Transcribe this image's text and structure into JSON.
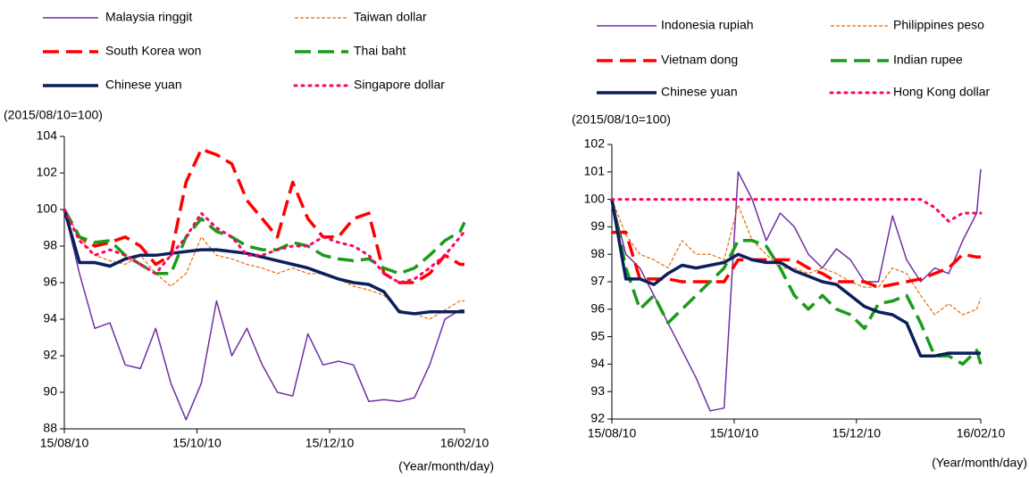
{
  "chart_data": [
    {
      "type": "line",
      "y_label": "(2015/08/10=100)",
      "x_label": "(Year/month/day)",
      "x": [
        "15/08/10",
        "15/08/17",
        "15/08/24",
        "15/08/31",
        "15/09/07",
        "15/09/14",
        "15/09/21",
        "15/09/28",
        "15/10/05",
        "15/10/12",
        "15/10/19",
        "15/10/26",
        "15/11/02",
        "15/11/09",
        "15/11/16",
        "15/11/23",
        "15/11/30",
        "15/12/07",
        "15/12/14",
        "15/12/21",
        "15/12/28",
        "16/01/04",
        "16/01/11",
        "16/01/18",
        "16/01/25",
        "16/02/01",
        "16/02/08",
        "16/02/10"
      ],
      "xlim": [
        "15/08/10",
        "16/02/10"
      ],
      "xticks": [
        "15/08/10",
        "15/10/10",
        "15/12/10",
        "16/02/10"
      ],
      "ylim": [
        88,
        104
      ],
      "yticks": [
        88,
        90,
        92,
        94,
        96,
        98,
        100,
        102,
        104
      ],
      "series": [
        {
          "name": "Malaysia ringgit",
          "color": "#7030a0",
          "style": "solid-thin",
          "values": [
            100,
            96.5,
            93.5,
            93.8,
            91.5,
            91.3,
            93.5,
            90.5,
            88.5,
            90.5,
            95.0,
            92.0,
            93.5,
            91.5,
            90.0,
            89.8,
            93.2,
            91.5,
            91.7,
            91.5,
            89.5,
            89.6,
            89.5,
            89.7,
            91.5,
            94.0,
            94.5,
            94.5
          ]
        },
        {
          "name": "Taiwan dollar",
          "color": "#e46c0a",
          "style": "short-dash",
          "values": [
            100,
            98.5,
            97.5,
            97.2,
            97.0,
            97.5,
            96.5,
            95.8,
            96.5,
            98.5,
            97.5,
            97.3,
            97.0,
            96.8,
            96.5,
            96.8,
            96.5,
            96.5,
            96.2,
            95.8,
            95.6,
            95.3,
            94.5,
            94.3,
            94.0,
            94.5,
            95.0,
            95.0
          ]
        },
        {
          "name": "South Korea won",
          "color": "#ff0000",
          "style": "long-dash",
          "values": [
            100,
            98.5,
            98.0,
            98.2,
            98.5,
            98.0,
            97.0,
            97.5,
            101.5,
            103.3,
            103.0,
            102.5,
            100.5,
            99.5,
            98.5,
            101.5,
            99.5,
            98.5,
            98.5,
            99.5,
            99.8,
            96.5,
            96.0,
            96.0,
            96.5,
            97.5,
            97.0,
            97.0
          ]
        },
        {
          "name": "Thai baht",
          "color": "#1a9b1a",
          "style": "long-dash",
          "values": [
            100,
            98.5,
            98.2,
            98.3,
            97.5,
            97.0,
            96.5,
            96.5,
            98.5,
            99.5,
            98.8,
            98.5,
            98.0,
            97.8,
            97.8,
            98.2,
            98.0,
            97.5,
            97.3,
            97.2,
            97.3,
            96.8,
            96.5,
            96.8,
            97.5,
            98.3,
            98.8,
            99.3
          ]
        },
        {
          "name": "Chinese yuan",
          "color": "#0a1f5c",
          "style": "solid-thick",
          "values": [
            100,
            97.1,
            97.1,
            96.9,
            97.3,
            97.5,
            97.5,
            97.6,
            97.7,
            97.8,
            97.8,
            97.7,
            97.6,
            97.4,
            97.2,
            97.0,
            96.8,
            96.5,
            96.2,
            96.0,
            95.9,
            95.5,
            94.4,
            94.3,
            94.4,
            94.4,
            94.4,
            94.4
          ]
        },
        {
          "name": "Singapore dollar",
          "color": "#ff0066",
          "style": "dotted",
          "values": [
            100,
            98.3,
            97.5,
            97.8,
            97.5,
            97.0,
            96.5,
            97.5,
            98.5,
            99.8,
            99.0,
            98.5,
            97.5,
            97.5,
            97.8,
            98.0,
            98.0,
            98.5,
            98.2,
            98.0,
            97.5,
            96.5,
            96.0,
            96.2,
            96.8,
            97.5,
            98.5,
            98.8
          ]
        }
      ]
    },
    {
      "type": "line",
      "y_label": "(2015/08/10=100)",
      "x_label": "(Year/month/day)",
      "x": [
        "15/08/10",
        "15/08/17",
        "15/08/24",
        "15/08/31",
        "15/09/07",
        "15/09/14",
        "15/09/21",
        "15/09/28",
        "15/10/05",
        "15/10/12",
        "15/10/19",
        "15/10/26",
        "15/11/02",
        "15/11/09",
        "15/11/16",
        "15/11/23",
        "15/11/30",
        "15/12/07",
        "15/12/14",
        "15/12/21",
        "15/12/28",
        "16/01/04",
        "16/01/11",
        "16/01/18",
        "16/01/25",
        "16/02/01",
        "16/02/08",
        "16/02/10"
      ],
      "xlim": [
        "15/08/10",
        "16/02/10"
      ],
      "xticks": [
        "15/08/10",
        "15/10/10",
        "15/12/10",
        "16/02/10"
      ],
      "ylim": [
        92,
        102
      ],
      "yticks": [
        92,
        93,
        94,
        95,
        96,
        97,
        98,
        99,
        100,
        101,
        102
      ],
      "series": [
        {
          "name": "Indonesia rupiah",
          "color": "#7030a0",
          "style": "solid-thin",
          "values": [
            100,
            98.0,
            97.5,
            96.5,
            95.5,
            94.5,
            93.5,
            92.3,
            92.4,
            101.0,
            100.0,
            98.5,
            99.5,
            99.0,
            98.0,
            97.5,
            98.2,
            97.8,
            97.0,
            97.0,
            99.4,
            97.8,
            97.0,
            97.5,
            97.3,
            98.5,
            99.5,
            101.1
          ]
        },
        {
          "name": "Philippines peso",
          "color": "#e46c0a",
          "style": "short-dash",
          "values": [
            100,
            98.7,
            98.0,
            97.8,
            97.5,
            98.5,
            98.0,
            98.0,
            97.8,
            99.8,
            98.5,
            98.0,
            97.5,
            97.5,
            97.3,
            97.5,
            97.3,
            97.0,
            96.8,
            96.8,
            97.5,
            97.3,
            96.5,
            95.8,
            96.2,
            95.8,
            96.0,
            96.4
          ]
        },
        {
          "name": "Vietnam dong",
          "color": "#ff0000",
          "style": "long-dash",
          "values": [
            98.8,
            98.8,
            97.1,
            97.1,
            97.1,
            97.0,
            97.0,
            97.0,
            97.0,
            97.8,
            97.8,
            97.8,
            97.8,
            97.8,
            97.5,
            97.3,
            97.0,
            97.0,
            97.0,
            96.8,
            96.9,
            97.0,
            97.1,
            97.3,
            97.5,
            98.0,
            97.9,
            97.9
          ]
        },
        {
          "name": "Indian rupee",
          "color": "#1a9b1a",
          "style": "long-dash",
          "values": [
            100,
            97.5,
            96.0,
            96.5,
            95.5,
            96.0,
            96.5,
            97.0,
            97.5,
            98.5,
            98.5,
            98.3,
            97.5,
            96.5,
            96.0,
            96.5,
            96.0,
            95.8,
            95.3,
            96.2,
            96.3,
            96.5,
            95.5,
            94.3,
            94.3,
            94.0,
            94.5,
            94.0
          ]
        },
        {
          "name": "Chinese yuan",
          "color": "#0a1f5c",
          "style": "solid-thick",
          "values": [
            100,
            97.1,
            97.1,
            96.9,
            97.3,
            97.6,
            97.5,
            97.6,
            97.7,
            98.0,
            97.8,
            97.7,
            97.7,
            97.4,
            97.2,
            97.0,
            96.9,
            96.5,
            96.1,
            95.9,
            95.8,
            95.5,
            94.3,
            94.3,
            94.4,
            94.4,
            94.4,
            94.4
          ]
        },
        {
          "name": "Hong Kong dollar",
          "color": "#ff0066",
          "style": "dotted",
          "values": [
            100,
            100,
            100,
            100,
            100,
            100,
            100,
            100,
            100,
            100,
            100,
            100,
            100,
            100,
            100,
            100,
            100,
            100,
            100,
            100,
            100,
            100,
            100,
            99.7,
            99.2,
            99.5,
            99.5,
            99.5
          ]
        }
      ]
    }
  ]
}
